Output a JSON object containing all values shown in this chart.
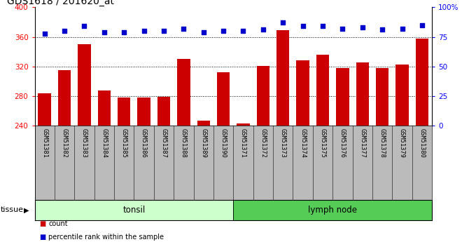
{
  "title": "GDS1618 / 201620_at",
  "categories": [
    "GSM51381",
    "GSM51382",
    "GSM51383",
    "GSM51384",
    "GSM51385",
    "GSM51386",
    "GSM51387",
    "GSM51388",
    "GSM51389",
    "GSM51390",
    "GSM51371",
    "GSM51372",
    "GSM51373",
    "GSM51374",
    "GSM51375",
    "GSM51376",
    "GSM51377",
    "GSM51378",
    "GSM51379",
    "GSM51380"
  ],
  "counts": [
    284,
    315,
    350,
    288,
    278,
    278,
    279,
    330,
    247,
    312,
    243,
    321,
    369,
    328,
    336,
    318,
    326,
    318,
    323,
    358
  ],
  "percentiles": [
    78,
    80,
    84,
    79,
    79,
    80,
    80,
    82,
    79,
    80,
    80,
    81,
    87,
    84,
    84,
    82,
    83,
    81,
    82,
    85
  ],
  "ylim_left": [
    240,
    400
  ],
  "ylim_right": [
    0,
    100
  ],
  "yticks_left": [
    240,
    280,
    320,
    360,
    400
  ],
  "yticks_right": [
    0,
    25,
    50,
    75,
    100
  ],
  "bar_color": "#cc0000",
  "dot_color": "#0000cc",
  "tissue_groups": [
    {
      "label": "tonsil",
      "start": 0,
      "end": 9,
      "color": "#ccffcc"
    },
    {
      "label": "lymph node",
      "start": 10,
      "end": 19,
      "color": "#55cc55"
    }
  ],
  "legend_items": [
    {
      "label": "count",
      "color": "#cc0000",
      "marker": "s"
    },
    {
      "label": "percentile rank within the sample",
      "color": "#0000cc",
      "marker": "s"
    }
  ],
  "tissue_label": "tissue",
  "background_color": "#ffffff",
  "plot_bg_color": "#ffffff",
  "tick_label_bg": "#bbbbbb",
  "n_tonsil": 10,
  "n_total": 20
}
